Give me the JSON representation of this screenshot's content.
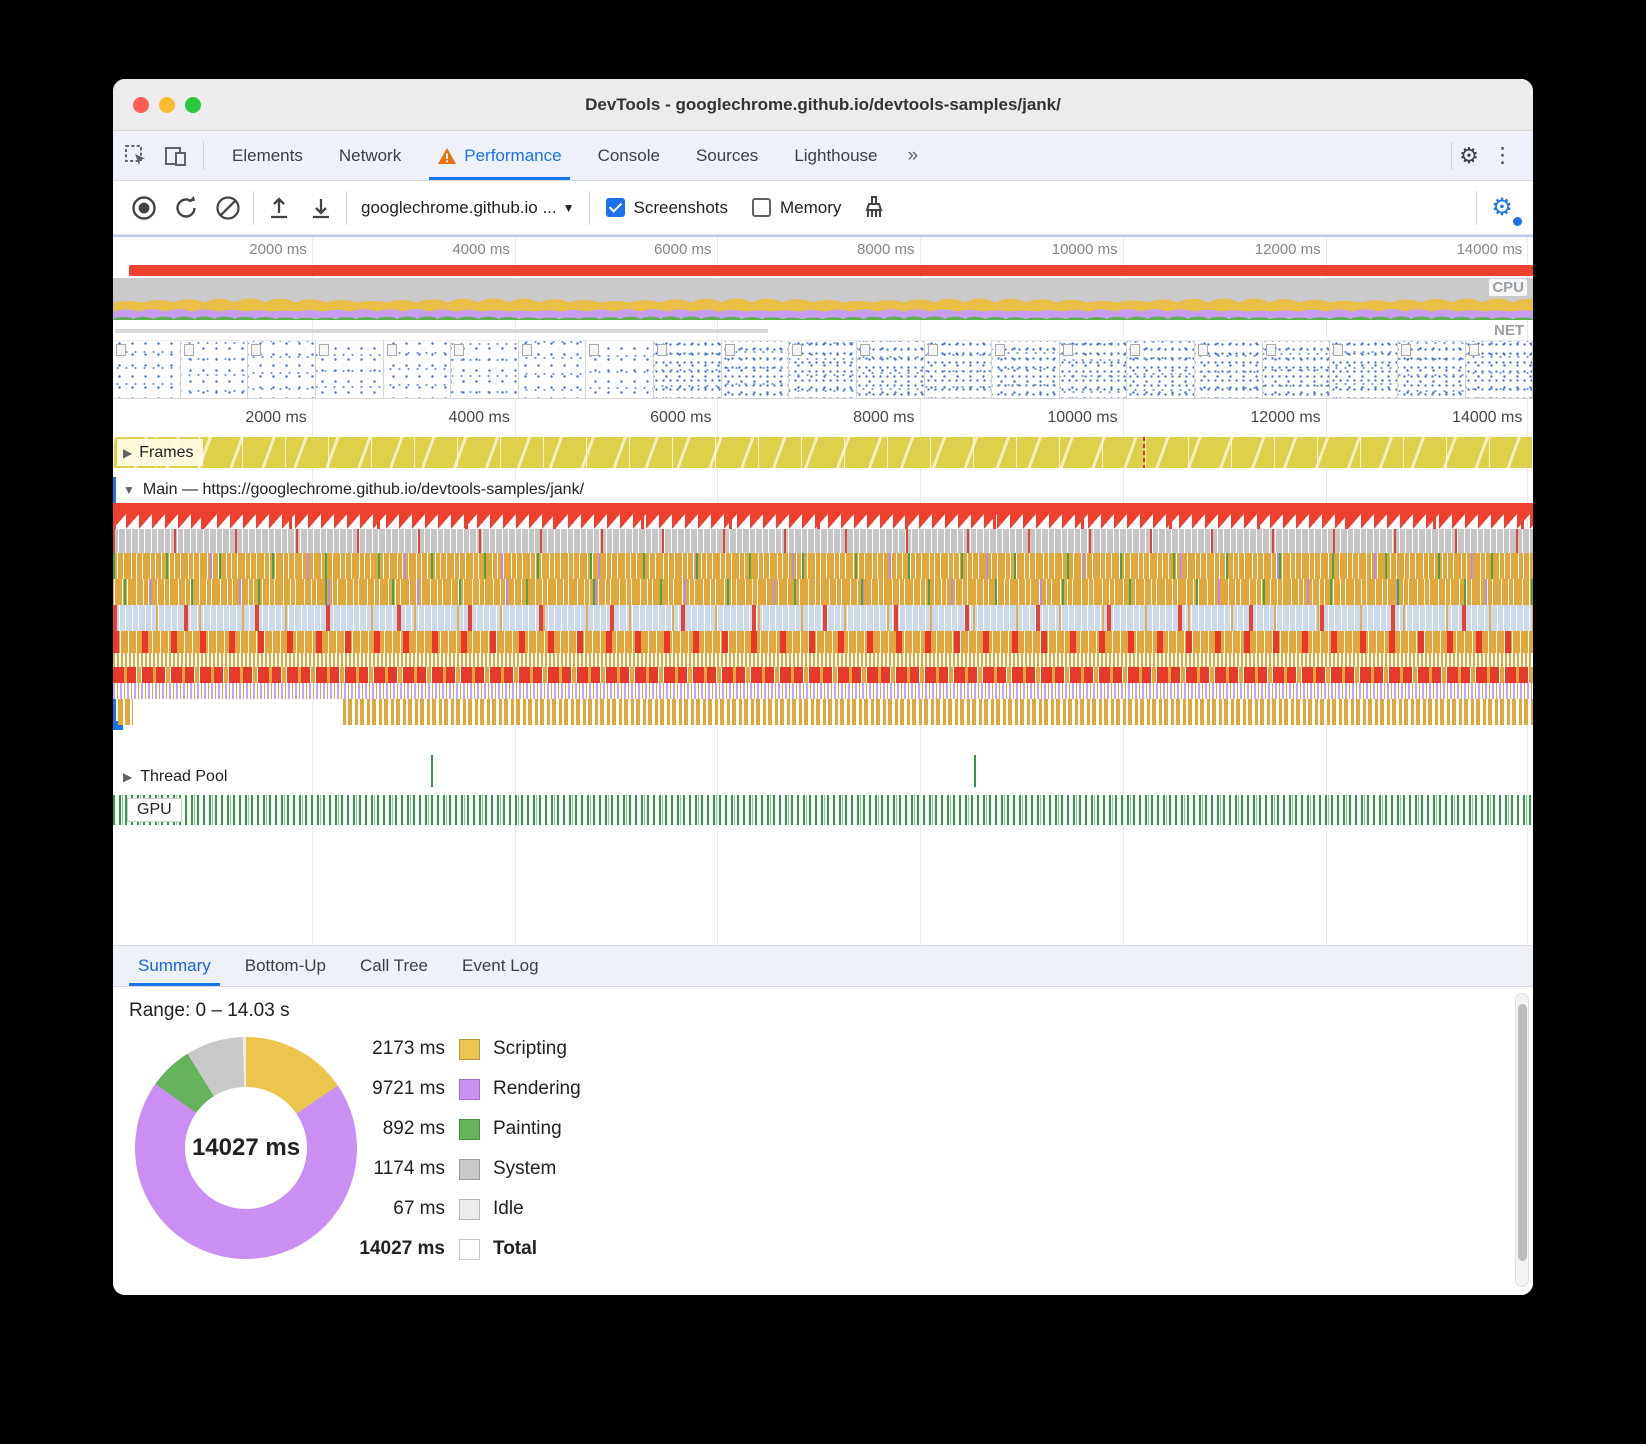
{
  "window": {
    "title": "DevTools - googlechrome.github.io/devtools-samples/jank/"
  },
  "tabbar": {
    "tabs": [
      "Elements",
      "Network",
      "Performance",
      "Console",
      "Sources",
      "Lighthouse"
    ],
    "more_label": "»",
    "gear_glyph": "⚙",
    "kebab_glyph": "⋮"
  },
  "toolbar": {
    "url_label": "googlechrome.github.io ...",
    "caret_glyph": "▼",
    "screenshots_label": "Screenshots",
    "memory_label": "Memory"
  },
  "timeline": {
    "ticks": [
      "2000 ms",
      "4000 ms",
      "6000 ms",
      "8000 ms",
      "10000 ms",
      "12000 ms",
      "14000 ms"
    ],
    "cpu_label": "CPU",
    "net_label": "NET"
  },
  "tracks": {
    "frames_label": "Frames",
    "frames_arrow": "▶",
    "main_label": "Main — https://googlechrome.github.io/devtools-samples/jank/",
    "main_arrow": "▼",
    "thread_pool_label": "Thread Pool",
    "thread_pool_arrow": "▶",
    "gpu_label": "GPU"
  },
  "bottom_tabs": [
    "Summary",
    "Bottom-Up",
    "Call Tree",
    "Event Log"
  ],
  "summary": {
    "range_label": "Range: 0 – 14.03 s"
  },
  "chart_data": {
    "type": "pie",
    "title": "Range: 0 – 14.03 s",
    "center_label": "14027 ms",
    "legend_position": "right",
    "slices": [
      {
        "name": "Scripting",
        "value": 2173,
        "value_label": "2173 ms",
        "color": "#ebc54c"
      },
      {
        "name": "Rendering",
        "value": 9721,
        "value_label": "9721 ms",
        "color": "#c98ff2"
      },
      {
        "name": "Painting",
        "value": 892,
        "value_label": "892 ms",
        "color": "#65b35a"
      },
      {
        "name": "System",
        "value": 1174,
        "value_label": "1174 ms",
        "color": "#c9c9c9"
      },
      {
        "name": "Idle",
        "value": 67,
        "value_label": "67 ms",
        "color": "#ececec"
      }
    ],
    "total_row": {
      "name": "Total",
      "value": 14027,
      "value_label": "14027 ms",
      "color": "#ffffff"
    },
    "colors": {
      "accent_blue": "#1a73e8",
      "task_red": "#ee402e",
      "scripting_yellow": "#e2a73c",
      "rendering_purple": "#c98ff2",
      "painting_green": "#65b35a",
      "system_gray": "#c9c9c9"
    }
  }
}
